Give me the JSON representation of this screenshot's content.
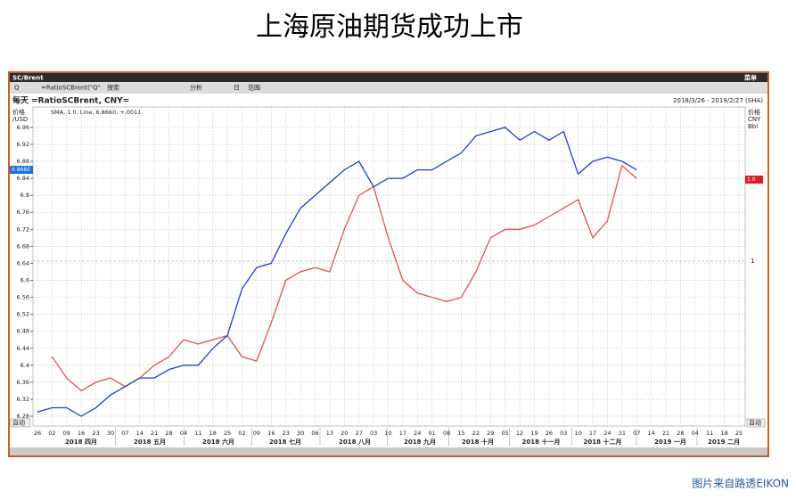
{
  "page_title": "上海原油期货成功上市",
  "window": {
    "title": "SC/Brent",
    "toolbar": [
      "Q",
      "=RatioSCBrent(\"Q\"",
      "搜索",
      "分析",
      "日",
      "范围"
    ],
    "menu": "菜单"
  },
  "chart_data": {
    "type": "line",
    "title": "每天 =RatioSCBrent, CNY=",
    "subtitle": "2018/3/26 - 2019/2/27 (SHA)",
    "y_unit_left": [
      "价格",
      "/USD"
    ],
    "y_unit_right": [
      "价格",
      "CNY",
      "Bbl"
    ],
    "legend_text": "SMA, 1.0, Line, 6.8660, +.0011",
    "current_left": "6.8660",
    "right_labels": {
      "tick": "1",
      "current": "1.0"
    },
    "auto_buttons": [
      "自动",
      "自动"
    ],
    "x": [
      "26",
      "02",
      "09",
      "16",
      "23",
      "30",
      "07",
      "14",
      "21",
      "28",
      "04",
      "11",
      "18",
      "25",
      "02",
      "09",
      "16",
      "23",
      "30",
      "06",
      "13",
      "20",
      "27",
      "03",
      "10",
      "17",
      "24",
      "01",
      "08",
      "15",
      "22",
      "29",
      "05",
      "12",
      "19",
      "26",
      "03",
      "10",
      "17",
      "24",
      "31",
      "07",
      "14",
      "21",
      "28",
      "04",
      "11",
      "18",
      "25"
    ],
    "month_labels": [
      "2018 四月",
      "2018 五月",
      "2018 六月",
      "2018 七月",
      "2018 八月",
      "2018 九月",
      "2018 十月",
      "2018 十一月",
      "2018 十二月",
      "2019 一月",
      "2019 二月"
    ],
    "series": [
      {
        "name": "RatioSCBrent",
        "color": "#1a3fd0",
        "values": [
          6.29,
          6.3,
          6.3,
          6.28,
          6.3,
          6.33,
          6.35,
          6.37,
          6.37,
          6.39,
          6.4,
          6.4,
          6.44,
          6.47,
          6.58,
          6.63,
          6.64,
          6.71,
          6.77,
          6.8,
          6.83,
          6.86,
          6.88,
          6.82,
          6.84,
          6.84,
          6.86,
          6.86,
          6.88,
          6.9,
          6.94,
          6.95,
          6.96,
          6.93,
          6.95,
          6.93,
          6.95,
          6.85,
          6.88,
          6.89,
          6.88,
          6.86,
          null,
          null,
          null,
          null,
          null,
          null,
          null
        ]
      },
      {
        "name": "SMA",
        "color": "#e05050",
        "values": [
          null,
          6.42,
          6.37,
          6.34,
          6.36,
          6.37,
          6.35,
          6.37,
          6.4,
          6.42,
          6.46,
          6.45,
          6.46,
          6.47,
          6.42,
          6.41,
          6.5,
          6.6,
          6.62,
          6.63,
          6.62,
          6.72,
          6.8,
          6.82,
          6.7,
          6.6,
          6.57,
          6.56,
          6.55,
          6.56,
          6.62,
          6.7,
          6.72,
          6.72,
          6.73,
          6.75,
          6.77,
          6.79,
          6.7,
          6.74,
          6.87,
          6.84,
          null,
          null,
          null,
          null,
          null,
          null,
          null
        ]
      }
    ],
    "ylim": [
      6.257,
      7.008
    ],
    "yticks": [
      6.28,
      6.32,
      6.36,
      6.4,
      6.44,
      6.48,
      6.52,
      6.56,
      6.6,
      6.64,
      6.68,
      6.72,
      6.76,
      6.8,
      6.84,
      6.88,
      6.92,
      6.96
    ],
    "grid": true
  },
  "footer": "图片来自路透EIKON"
}
